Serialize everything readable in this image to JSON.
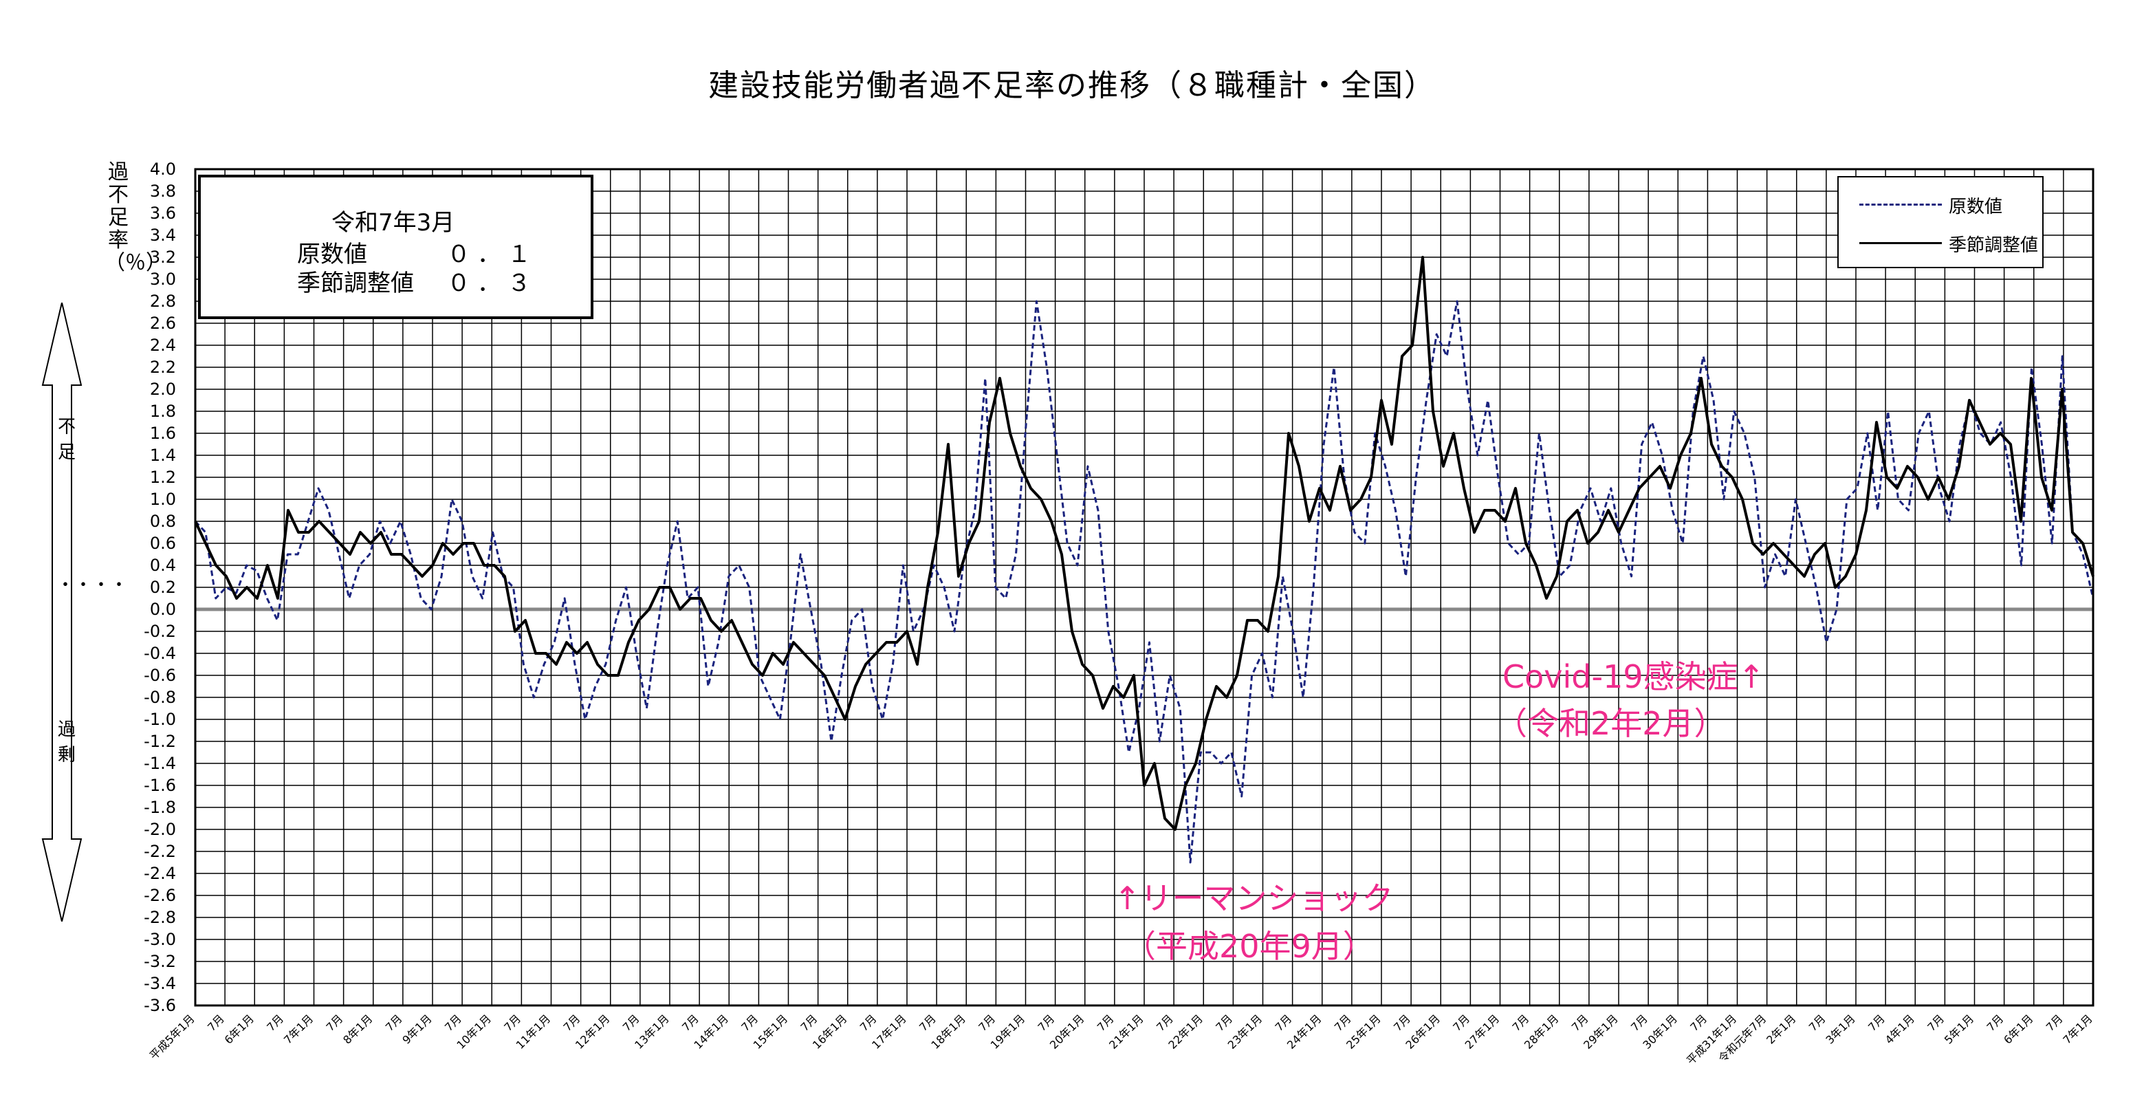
{
  "title": "建設技能労働者過不足率の推移（８職種計・全国）",
  "y_axis_label": "過不足率（％）",
  "direction": {
    "top": "不足",
    "middle": "・・・・",
    "bottom": "過剰"
  },
  "info_box": {
    "period": "令和7年3月",
    "rows": [
      {
        "label": "原数値",
        "value": "０．１"
      },
      {
        "label": "季節調整値",
        "value": "０．３"
      }
    ]
  },
  "legend": [
    {
      "label": "原数値",
      "style": "dashed",
      "color": "#1a237e"
    },
    {
      "label": "季節調整値",
      "style": "solid",
      "color": "#000000"
    }
  ],
  "annotations": [
    {
      "line1": "↑リーマンショック",
      "line2": "（平成20年9月）"
    },
    {
      "line1": "Covid-19感染症↑",
      "line2": "（令和2年2月）"
    }
  ],
  "colors": {
    "annotation": "#ee2c8c",
    "raw_series": "#1a237e",
    "sa_series": "#000000",
    "grid": "#000000"
  },
  "chart_data": {
    "type": "line",
    "title": "建設技能労働者過不足率の推移（８職種計・全国）",
    "ylabel": "過不足率（％）",
    "ylim": [
      -3.6,
      4.0
    ],
    "y_tick_step": 0.2,
    "grid": true,
    "legend_position": "top-right",
    "x_ticks": [
      "平成5年1月",
      "7月",
      "6年1月",
      "7月",
      "7年1月",
      "7月",
      "8年1月",
      "7月",
      "9年1月",
      "7月",
      "10年1月",
      "7月",
      "11年1月",
      "7月",
      "12年1月",
      "7月",
      "13年1月",
      "7月",
      "14年1月",
      "7月",
      "15年1月",
      "7月",
      "16年1月",
      "7月",
      "17年1月",
      "7月",
      "18年1月",
      "7月",
      "19年1月",
      "7月",
      "20年1月",
      "7月",
      "21年1月",
      "7月",
      "22年1月",
      "7月",
      "23年1月",
      "7月",
      "24年1月",
      "7月",
      "25年1月",
      "7月",
      "26年1月",
      "7月",
      "27年1月",
      "7月",
      "28年1月",
      "7月",
      "29年1月",
      "7月",
      "30年1月",
      "7月",
      "平成31年1月",
      "令和元年7月",
      "2年1月",
      "7月",
      "3年1月",
      "7月",
      "4年1月",
      "7月",
      "5年1月",
      "7月",
      "6年1月",
      "7月",
      "7年1月"
    ],
    "series": [
      {
        "name": "原数値",
        "style": "dashed",
        "values": [
          0.8,
          0.7,
          0.1,
          0.2,
          0.15,
          0.4,
          0.35,
          0.1,
          -0.1,
          0.5,
          0.5,
          0.8,
          1.1,
          0.9,
          0.5,
          0.1,
          0.4,
          0.5,
          0.8,
          0.6,
          0.8,
          0.5,
          0.1,
          0.0,
          0.3,
          1.0,
          0.8,
          0.3,
          0.1,
          0.7,
          0.3,
          0.2,
          -0.5,
          -0.8,
          -0.5,
          -0.3,
          0.1,
          -0.5,
          -1.0,
          -0.7,
          -0.5,
          -0.1,
          0.2,
          -0.4,
          -0.9,
          -0.2,
          0.4,
          0.8,
          0.1,
          0.2,
          -0.7,
          -0.3,
          0.3,
          0.4,
          0.2,
          -0.6,
          -0.8,
          -1.0,
          -0.3,
          0.5,
          0.0,
          -0.5,
          -1.2,
          -0.6,
          -0.1,
          0.0,
          -0.7,
          -1.0,
          -0.5,
          0.4,
          -0.2,
          0.0,
          0.4,
          0.2,
          -0.2,
          0.5,
          0.9,
          2.1,
          0.2,
          0.1,
          0.5,
          1.7,
          2.8,
          2.2,
          1.4,
          0.6,
          0.4,
          1.3,
          0.9,
          -0.2,
          -0.7,
          -1.3,
          -0.9,
          -0.3,
          -1.2,
          -0.6,
          -0.9,
          -2.3,
          -1.3,
          -1.3,
          -1.4,
          -1.3,
          -1.7,
          -0.6,
          -0.4,
          -0.8,
          0.3,
          -0.2,
          -0.8,
          0.2,
          1.5,
          2.2,
          1.2,
          0.7,
          0.6,
          1.6,
          1.3,
          0.9,
          0.3,
          1.2,
          1.9,
          2.5,
          2.3,
          2.8,
          2.0,
          1.4,
          1.9,
          1.2,
          0.6,
          0.5,
          0.6,
          1.6,
          0.9,
          0.3,
          0.4,
          0.9,
          1.1,
          0.8,
          1.1,
          0.6,
          0.3,
          1.5,
          1.7,
          1.4,
          0.9,
          0.6,
          1.8,
          2.3,
          1.9,
          1.0,
          1.8,
          1.6,
          1.2,
          0.2,
          0.5,
          0.3,
          1.0,
          0.6,
          0.2,
          -0.3,
          0.0,
          1.0,
          1.1,
          1.6,
          0.9,
          1.8,
          1.0,
          0.9,
          1.6,
          1.8,
          1.1,
          0.8,
          1.5,
          1.9,
          1.6,
          1.5,
          1.7,
          1.2,
          0.4,
          2.2,
          1.5,
          0.6,
          2.3,
          0.7,
          0.5,
          0.1
        ]
      },
      {
        "name": "季節調整値",
        "style": "solid",
        "values": [
          0.8,
          0.6,
          0.4,
          0.3,
          0.1,
          0.2,
          0.1,
          0.4,
          0.1,
          0.9,
          0.7,
          0.7,
          0.8,
          0.7,
          0.6,
          0.5,
          0.7,
          0.6,
          0.7,
          0.5,
          0.5,
          0.4,
          0.3,
          0.4,
          0.6,
          0.5,
          0.6,
          0.6,
          0.4,
          0.4,
          0.3,
          -0.2,
          -0.1,
          -0.4,
          -0.4,
          -0.5,
          -0.3,
          -0.4,
          -0.3,
          -0.5,
          -0.6,
          -0.6,
          -0.3,
          -0.1,
          0.0,
          0.2,
          0.2,
          0.0,
          0.1,
          0.1,
          -0.1,
          -0.2,
          -0.1,
          -0.3,
          -0.5,
          -0.6,
          -0.4,
          -0.5,
          -0.3,
          -0.4,
          -0.5,
          -0.6,
          -0.8,
          -1.0,
          -0.7,
          -0.5,
          -0.4,
          -0.3,
          -0.3,
          -0.2,
          -0.5,
          0.2,
          0.7,
          1.5,
          0.3,
          0.6,
          0.8,
          1.7,
          2.1,
          1.6,
          1.3,
          1.1,
          1.0,
          0.8,
          0.5,
          -0.2,
          -0.5,
          -0.6,
          -0.9,
          -0.7,
          -0.8,
          -0.6,
          -1.6,
          -1.4,
          -1.9,
          -2.0,
          -1.6,
          -1.4,
          -1.0,
          -0.7,
          -0.8,
          -0.6,
          -0.1,
          -0.1,
          -0.2,
          0.3,
          1.6,
          1.3,
          0.8,
          1.1,
          0.9,
          1.3,
          0.9,
          1.0,
          1.2,
          1.9,
          1.5,
          2.3,
          2.4,
          3.2,
          1.8,
          1.3,
          1.6,
          1.1,
          0.7,
          0.9,
          0.9,
          0.8,
          1.1,
          0.6,
          0.4,
          0.1,
          0.3,
          0.8,
          0.9,
          0.6,
          0.7,
          0.9,
          0.7,
          0.9,
          1.1,
          1.2,
          1.3,
          1.1,
          1.4,
          1.6,
          2.1,
          1.5,
          1.3,
          1.2,
          1.0,
          0.6,
          0.5,
          0.6,
          0.5,
          0.4,
          0.3,
          0.5,
          0.6,
          0.2,
          0.3,
          0.5,
          0.9,
          1.7,
          1.2,
          1.1,
          1.3,
          1.2,
          1.0,
          1.2,
          1.0,
          1.3,
          1.9,
          1.7,
          1.5,
          1.6,
          1.5,
          0.8,
          2.1,
          1.2,
          0.9,
          2.0,
          0.7,
          0.6,
          0.3
        ]
      }
    ]
  }
}
